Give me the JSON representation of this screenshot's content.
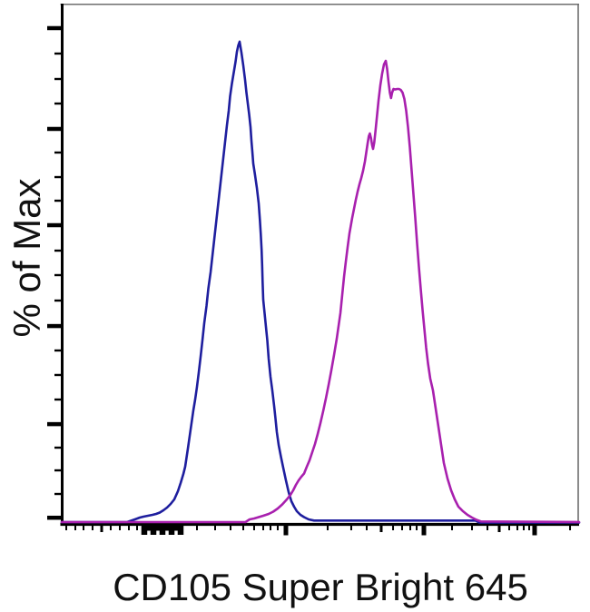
{
  "chart_data": {
    "type": "line",
    "subtype": "flow-cytometry-histogram-overlay",
    "title": "",
    "xlabel": "CD105 Super Bright 645",
    "ylabel": "% of Max",
    "x_axis_scale": "biexponential-log, unlabeled",
    "ylim": [
      0,
      100
    ],
    "grid": false,
    "legend": "none",
    "colors": {
      "axis": "#000000",
      "frame": "#6e6e6e",
      "blue_series": "#1e1e9e",
      "magenta_series": "#a820ae"
    },
    "series": [
      {
        "name": "blue-histogram",
        "color_key": "blue_series",
        "points": [
          [
            0.0,
            0.09
          ],
          [
            0.1263,
            0.09
          ],
          [
            0.1439,
            0.76
          ],
          [
            0.1509,
            1.04
          ],
          [
            0.1579,
            1.23
          ],
          [
            0.1667,
            1.42
          ],
          [
            0.1754,
            1.61
          ],
          [
            0.1825,
            1.8
          ],
          [
            0.1895,
            2.09
          ],
          [
            0.1965,
            2.56
          ],
          [
            0.2035,
            3.13
          ],
          [
            0.2105,
            3.89
          ],
          [
            0.2175,
            4.83
          ],
          [
            0.2246,
            6.54
          ],
          [
            0.2298,
            8.25
          ],
          [
            0.2351,
            10.14
          ],
          [
            0.2386,
            11.66
          ],
          [
            0.2439,
            15.45
          ],
          [
            0.2474,
            18.1
          ],
          [
            0.2509,
            20.76
          ],
          [
            0.2544,
            23.41
          ],
          [
            0.2579,
            25.69
          ],
          [
            0.2614,
            28.34
          ],
          [
            0.2649,
            31.37
          ],
          [
            0.2684,
            34.6
          ],
          [
            0.2719,
            38.01
          ],
          [
            0.2754,
            41.61
          ],
          [
            0.2798,
            45.21
          ],
          [
            0.2833,
            48.82
          ],
          [
            0.2877,
            52.23
          ],
          [
            0.2912,
            55.64
          ],
          [
            0.2947,
            59.05
          ],
          [
            0.2982,
            62.46
          ],
          [
            0.3018,
            65.88
          ],
          [
            0.3053,
            69.29
          ],
          [
            0.3088,
            72.7
          ],
          [
            0.3123,
            76.11
          ],
          [
            0.3158,
            79.53
          ],
          [
            0.3193,
            82.94
          ],
          [
            0.3228,
            85.97
          ],
          [
            0.3254,
            89.0
          ],
          [
            0.3289,
            91.66
          ],
          [
            0.3325,
            93.93
          ],
          [
            0.336,
            96.21
          ],
          [
            0.3386,
            98.29
          ],
          [
            0.3412,
            99.6
          ],
          [
            0.3439,
            100.4
          ],
          [
            0.3474,
            98.1
          ],
          [
            0.3509,
            95.45
          ],
          [
            0.3544,
            92.42
          ],
          [
            0.357,
            89.76
          ],
          [
            0.3596,
            87.49
          ],
          [
            0.3623,
            85.21
          ],
          [
            0.3649,
            82.56
          ],
          [
            0.3667,
            79.72
          ],
          [
            0.3684,
            77.44
          ],
          [
            0.3702,
            74.98
          ],
          [
            0.3737,
            72.51
          ],
          [
            0.3772,
            69.86
          ],
          [
            0.3807,
            66.64
          ],
          [
            0.383,
            63.22
          ],
          [
            0.3847,
            60.19
          ],
          [
            0.3863,
            56.97
          ],
          [
            0.3874,
            53.74
          ],
          [
            0.3883,
            50.33
          ],
          [
            0.3895,
            46.54
          ],
          [
            0.3939,
            41.8
          ],
          [
            0.3974,
            38.01
          ],
          [
            0.4,
            34.22
          ],
          [
            0.4035,
            30.43
          ],
          [
            0.407,
            27.58
          ],
          [
            0.4105,
            24.36
          ],
          [
            0.4132,
            21.71
          ],
          [
            0.4158,
            18.86
          ],
          [
            0.4193,
            16.21
          ],
          [
            0.4237,
            13.74
          ],
          [
            0.4281,
            11.47
          ],
          [
            0.4333,
            8.82
          ],
          [
            0.4386,
            6.35
          ],
          [
            0.4439,
            4.45
          ],
          [
            0.4491,
            3.32
          ],
          [
            0.4544,
            2.37
          ],
          [
            0.4614,
            1.61
          ],
          [
            0.4684,
            1.14
          ],
          [
            0.4772,
            0.66
          ],
          [
            0.4877,
            0.42
          ],
          [
            0.8,
            0.42
          ],
          [
            0.807,
            0.0
          ],
          [
            1.0,
            0.0
          ]
        ]
      },
      {
        "name": "magenta-histogram",
        "color_key": "magenta_series",
        "points": [
          [
            0.0,
            0.09
          ],
          [
            0.355,
            0.09
          ],
          [
            0.3632,
            0.66
          ],
          [
            0.3719,
            0.85
          ],
          [
            0.3807,
            1.14
          ],
          [
            0.3895,
            1.42
          ],
          [
            0.4,
            1.8
          ],
          [
            0.4088,
            2.27
          ],
          [
            0.4175,
            2.94
          ],
          [
            0.4263,
            3.79
          ],
          [
            0.4351,
            4.83
          ],
          [
            0.4421,
            5.78
          ],
          [
            0.4474,
            6.73
          ],
          [
            0.4526,
            7.87
          ],
          [
            0.4579,
            8.82
          ],
          [
            0.4632,
            9.57
          ],
          [
            0.4684,
            10.24
          ],
          [
            0.4737,
            11.66
          ],
          [
            0.4789,
            12.99
          ],
          [
            0.4842,
            14.69
          ],
          [
            0.4895,
            16.4
          ],
          [
            0.4947,
            18.48
          ],
          [
            0.5,
            20.76
          ],
          [
            0.5053,
            23.22
          ],
          [
            0.5105,
            25.88
          ],
          [
            0.5158,
            28.72
          ],
          [
            0.5211,
            31.75
          ],
          [
            0.5263,
            34.98
          ],
          [
            0.5316,
            38.39
          ],
          [
            0.5386,
            43.7
          ],
          [
            0.5421,
            47.49
          ],
          [
            0.5456,
            51.28
          ],
          [
            0.5491,
            54.5
          ],
          [
            0.5526,
            57.54
          ],
          [
            0.5561,
            60.38
          ],
          [
            0.5614,
            63.6
          ],
          [
            0.5649,
            65.5
          ],
          [
            0.5684,
            67.39
          ],
          [
            0.5719,
            69.1
          ],
          [
            0.5754,
            70.62
          ],
          [
            0.5789,
            71.94
          ],
          [
            0.5824,
            73.46
          ],
          [
            0.5859,
            75.36
          ],
          [
            0.5886,
            77.25
          ],
          [
            0.5912,
            79.15
          ],
          [
            0.5935,
            80.66
          ],
          [
            0.5956,
            81.23
          ],
          [
            0.5977,
            80.28
          ],
          [
            0.6,
            78.77
          ],
          [
            0.6018,
            78.01
          ],
          [
            0.604,
            79.34
          ],
          [
            0.6067,
            81.99
          ],
          [
            0.6093,
            84.83
          ],
          [
            0.6123,
            88.06
          ],
          [
            0.6158,
            91.28
          ],
          [
            0.6193,
            93.74
          ],
          [
            0.6228,
            95.64
          ],
          [
            0.6263,
            96.4
          ],
          [
            0.629,
            94.69
          ],
          [
            0.6316,
            92.04
          ],
          [
            0.6342,
            89.76
          ],
          [
            0.6365,
            88.63
          ],
          [
            0.6386,
            89.76
          ],
          [
            0.6412,
            90.52
          ],
          [
            0.6447,
            90.43
          ],
          [
            0.6482,
            90.52
          ],
          [
            0.6518,
            90.52
          ],
          [
            0.6553,
            90.33
          ],
          [
            0.6588,
            89.76
          ],
          [
            0.6623,
            88.44
          ],
          [
            0.6658,
            85.97
          ],
          [
            0.6693,
            82.56
          ],
          [
            0.6728,
            78.39
          ],
          [
            0.6763,
            73.46
          ],
          [
            0.6798,
            68.53
          ],
          [
            0.6833,
            63.6
          ],
          [
            0.6868,
            58.29
          ],
          [
            0.6904,
            53.37
          ],
          [
            0.6939,
            48.82
          ],
          [
            0.6974,
            44.45
          ],
          [
            0.7009,
            40.47
          ],
          [
            0.7044,
            36.49
          ],
          [
            0.7079,
            33.27
          ],
          [
            0.7123,
            30.05
          ],
          [
            0.7175,
            27.58
          ],
          [
            0.7228,
            23.79
          ],
          [
            0.7281,
            20.0
          ],
          [
            0.7333,
            16.21
          ],
          [
            0.7386,
            12.42
          ],
          [
            0.7456,
            9.19
          ],
          [
            0.7526,
            6.73
          ],
          [
            0.7596,
            4.83
          ],
          [
            0.7667,
            3.32
          ],
          [
            0.7754,
            2.37
          ],
          [
            0.7842,
            1.61
          ],
          [
            0.793,
            1.04
          ],
          [
            0.8018,
            0.57
          ],
          [
            0.8105,
            0.23
          ],
          [
            1.0,
            0.09
          ]
        ]
      }
    ],
    "x_ticks": [
      {
        "f": 0.0088,
        "s": "minor"
      },
      {
        "f": 0.0263,
        "s": "minor"
      },
      {
        "f": 0.0421,
        "s": "minor"
      },
      {
        "f": 0.0596,
        "s": "minor"
      },
      {
        "f": 0.0772,
        "s": "mid"
      },
      {
        "f": 0.0947,
        "s": "minor"
      },
      {
        "f": 0.1123,
        "s": "minor"
      },
      {
        "f": 0.1298,
        "s": "minor"
      },
      {
        "f": 0.1456,
        "s": "minor"
      },
      {
        "f": 0.1596,
        "s": "clusterTall"
      },
      {
        "f": 0.1684,
        "s": "clusterShort"
      },
      {
        "f": 0.1772,
        "s": "clusterTall"
      },
      {
        "f": 0.186,
        "s": "clusterShort"
      },
      {
        "f": 0.1947,
        "s": "clusterTall"
      },
      {
        "f": 0.2035,
        "s": "clusterShort"
      },
      {
        "f": 0.2123,
        "s": "clusterTall"
      },
      {
        "f": 0.2211,
        "s": "clusterShort"
      },
      {
        "f": 0.2298,
        "s": "clusterTall"
      },
      {
        "f": 0.2614,
        "s": "minor"
      },
      {
        "f": 0.2965,
        "s": "minor"
      },
      {
        "f": 0.3263,
        "s": "minor"
      },
      {
        "f": 0.3509,
        "s": "minor"
      },
      {
        "f": 0.3719,
        "s": "minor"
      },
      {
        "f": 0.3895,
        "s": "minor"
      },
      {
        "f": 0.4035,
        "s": "minor"
      },
      {
        "f": 0.4175,
        "s": "minor"
      },
      {
        "f": 0.4333,
        "s": "major"
      },
      {
        "f": 0.514,
        "s": "minor"
      },
      {
        "f": 0.5596,
        "s": "minor"
      },
      {
        "f": 0.5895,
        "s": "minor"
      },
      {
        "f": 0.6175,
        "s": "mid"
      },
      {
        "f": 0.6404,
        "s": "minor"
      },
      {
        "f": 0.6579,
        "s": "minor"
      },
      {
        "f": 0.6737,
        "s": "minor"
      },
      {
        "f": 0.686,
        "s": "minor"
      },
      {
        "f": 0.7,
        "s": "major"
      },
      {
        "f": 0.7544,
        "s": "minor"
      },
      {
        "f": 0.793,
        "s": "minor"
      },
      {
        "f": 0.8228,
        "s": "minor"
      },
      {
        "f": 0.8456,
        "s": "mid"
      },
      {
        "f": 0.8649,
        "s": "minor"
      },
      {
        "f": 0.8807,
        "s": "minor"
      },
      {
        "f": 0.893,
        "s": "minor"
      },
      {
        "f": 0.9035,
        "s": "minor"
      },
      {
        "f": 0.914,
        "s": "major"
      },
      {
        "f": 0.9825,
        "s": "minor"
      }
    ],
    "y_ticks": {
      "major_fracs": [
        0.047,
        0.2404,
        0.4251,
        0.6186,
        0.8068,
        0.9864
      ],
      "minor_fracs": [
        0.0958,
        0.1446,
        0.1917,
        0.2857,
        0.3328,
        0.3781,
        0.4739,
        0.5209,
        0.5697,
        0.6655,
        0.7125,
        0.7596,
        0.8519,
        0.8955,
        0.9408
      ]
    }
  }
}
